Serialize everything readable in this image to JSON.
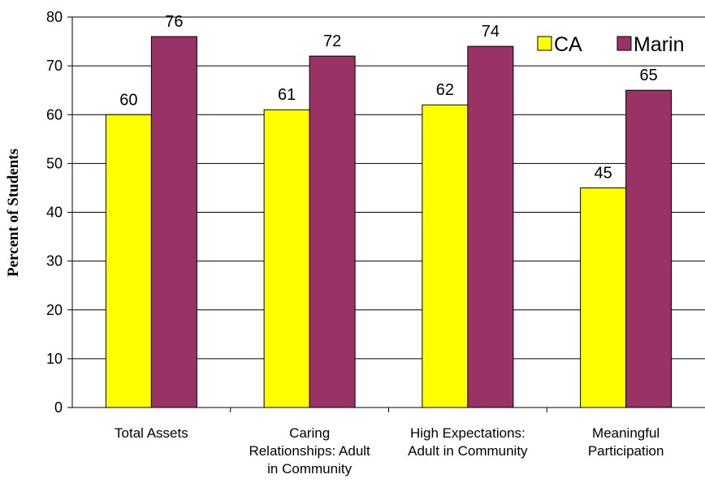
{
  "chart_data": {
    "type": "bar",
    "categories": [
      [
        "Total Assets"
      ],
      [
        "Caring",
        "Relationships: Adult",
        "in Community"
      ],
      [
        "High Expectations:",
        "Adult in Community"
      ],
      [
        "Meaningful",
        "Participation"
      ]
    ],
    "series": [
      {
        "name": "CA",
        "values": [
          60,
          61,
          62,
          45
        ],
        "color": "#ffff00"
      },
      {
        "name": "Marin",
        "values": [
          76,
          72,
          74,
          65
        ],
        "color": "#993366"
      }
    ],
    "title": "",
    "xlabel": "",
    "ylabel": "Percent of Students",
    "ylim": [
      0,
      80
    ],
    "yticks": [
      0,
      10,
      20,
      30,
      40,
      50,
      60,
      70,
      80
    ],
    "grid": true,
    "legend": "top-right"
  }
}
